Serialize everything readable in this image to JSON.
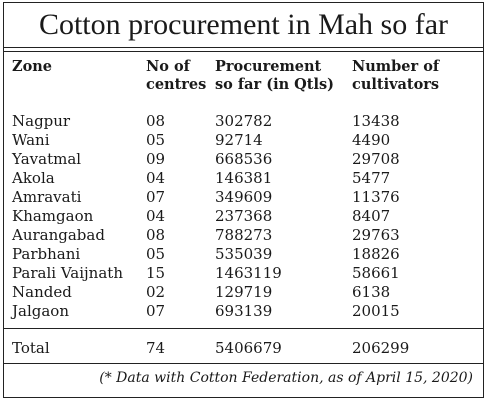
{
  "title": "Cotton procurement in Mah so far",
  "columns": [
    [
      "Zone",
      ""
    ],
    [
      "No of",
      "centres"
    ],
    [
      "Procurement",
      "so far (in Qtls)"
    ],
    [
      "Number of",
      "cultivators"
    ]
  ],
  "rows": [
    [
      "Nagpur",
      "08",
      "302782",
      "13438"
    ],
    [
      "Wani",
      "05",
      "92714",
      "4490"
    ],
    [
      "Yavatmal",
      "09",
      "668536",
      "29708"
    ],
    [
      "Akola",
      "04",
      "146381",
      "5477"
    ],
    [
      "Amravati",
      "07",
      "349609",
      "11376"
    ],
    [
      "Khamgaon",
      "04",
      "237368",
      "8407"
    ],
    [
      "Aurangabad",
      "08",
      "788273",
      "29763"
    ],
    [
      "Parbhani",
      "05",
      "535039",
      "18826"
    ],
    [
      "Parali Vaijnath",
      "15",
      "1463119",
      "58661"
    ],
    [
      "Nanded",
      "02",
      "129719",
      "6138"
    ],
    [
      "Jalgaon",
      "07",
      "693139",
      "20015"
    ]
  ],
  "total": [
    "Total",
    "74",
    "5406679",
    "206299"
  ],
  "note": "(* Data with Cotton Federation, as of April 15, 2020)"
}
